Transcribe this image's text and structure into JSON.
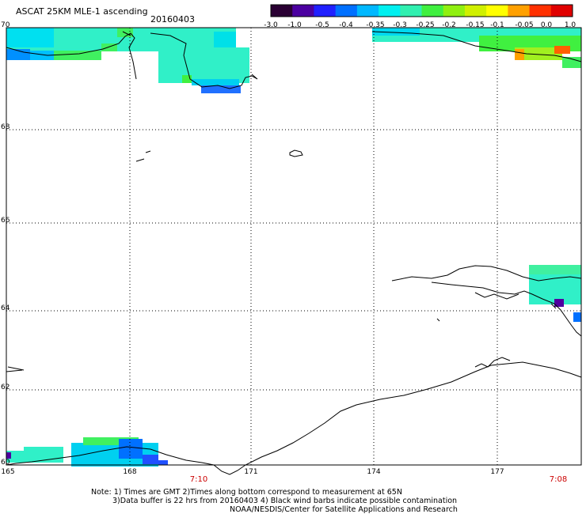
{
  "header": {
    "title": "ASCAT 25KM MLE-1 ascending",
    "date": "20160403"
  },
  "colorbar": {
    "ticks": [
      "-3.0",
      "-1.0",
      "-0.5",
      "-0.4",
      "-0.35",
      "-0.3",
      "-0.25",
      "-0.2",
      "-0.15",
      "-0.1",
      "-0.05",
      "0.0",
      "1.0"
    ],
    "colors": [
      "#2a0033",
      "#4b00a0",
      "#2020ff",
      "#0070ff",
      "#00b8ff",
      "#00f0f0",
      "#30f0b0",
      "#40f040",
      "#90f010",
      "#d0f000",
      "#ffff00",
      "#ffa000",
      "#ff3000",
      "#e00000"
    ]
  },
  "axes": {
    "lat_labels": [
      "70",
      "68",
      "66",
      "64",
      "62",
      "60"
    ],
    "lon_labels": [
      "165",
      "168",
      "171",
      "174",
      "177"
    ]
  },
  "times": [
    "7:10",
    "7:08"
  ],
  "notes": {
    "line1": "Note: 1) Times are GMT 2)Times along bottom correspond to measurement at 65N",
    "line2": "3)Data buffer is 22 hrs from 20160403 4) Black wind barbs indicate possible contamination",
    "line3": "NOAA/NESDIS/Center for Satellite Applications and Research"
  }
}
